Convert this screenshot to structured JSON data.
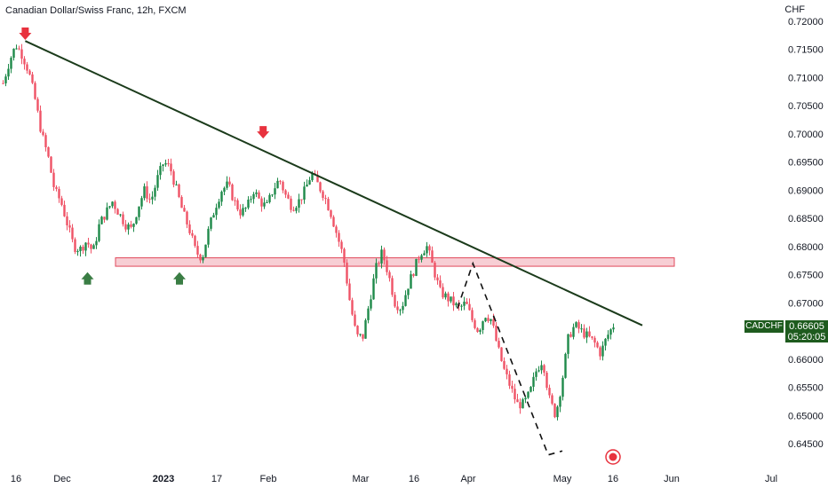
{
  "header": {
    "title": "Canadian Dollar/Swiss Franc, 12h, FXCM",
    "currency": "CHF"
  },
  "badges": {
    "symbol": "CADCHF",
    "price": "0.66605",
    "countdown": "05:20:05"
  },
  "chart_data": {
    "type": "candlestick",
    "title": "Canadian Dollar/Swiss Franc, 12h, FXCM",
    "y_ticks": [
      "0.72000",
      "0.71500",
      "0.71000",
      "0.70500",
      "0.70000",
      "0.69500",
      "0.69000",
      "0.68500",
      "0.68000",
      "0.67500",
      "0.67000",
      "0.66500",
      "0.66000",
      "0.65500",
      "0.65000",
      "0.64500"
    ],
    "x_ticks": [
      "16",
      "Dec",
      "2023",
      "17",
      "Feb",
      "Mar",
      "16",
      "Apr",
      "May",
      "16",
      "Jun",
      "Jul"
    ],
    "ylim": [
      0.6425,
      0.7205
    ],
    "close_path": [
      0.709,
      0.713,
      0.7158,
      0.714,
      0.711,
      0.706,
      0.7,
      0.696,
      0.69,
      0.688,
      0.684,
      0.68,
      0.6795,
      0.681,
      0.679,
      0.684,
      0.686,
      0.688,
      0.686,
      0.684,
      0.683,
      0.687,
      0.69,
      0.688,
      0.692,
      0.695,
      0.694,
      0.69,
      0.686,
      0.683,
      0.679,
      0.678,
      0.683,
      0.687,
      0.69,
      0.691,
      0.688,
      0.686,
      0.687,
      0.69,
      0.688,
      0.687,
      0.69,
      0.692,
      0.689,
      0.687,
      0.688,
      0.69,
      0.693,
      0.691,
      0.689,
      0.686,
      0.682,
      0.678,
      0.67,
      0.664,
      0.664,
      0.67,
      0.676,
      0.679,
      0.675,
      0.67,
      0.669,
      0.673,
      0.676,
      0.679,
      0.68,
      0.676,
      0.672,
      0.671,
      0.67,
      0.669,
      0.67,
      0.667,
      0.665,
      0.668,
      0.667,
      0.662,
      0.658,
      0.655,
      0.652,
      0.652,
      0.654,
      0.658,
      0.66,
      0.653,
      0.65,
      0.656,
      0.664,
      0.666,
      0.665,
      0.664,
      0.663,
      0.661,
      0.664,
      0.666
    ],
    "annotations": {
      "trendline": [
        [
          0.2,
          0.7165
        ],
        [
          9.5,
          0.666
        ]
      ],
      "resistance_zone": [
        0.6765,
        0.678
      ],
      "arrows_down": [
        [
          0.2,
          0.717
        ],
        [
          3.9,
          0.6995
        ]
      ],
      "arrows_up": [
        [
          1.25,
          0.6745
        ],
        [
          2.3,
          0.6745
        ]
      ],
      "projection": [
        [
          6.8,
          0.669
        ],
        [
          7.05,
          0.677
        ],
        [
          7.85,
          0.643
        ],
        [
          8.0,
          0.6437
        ]
      ]
    },
    "colors": {
      "up": "#1e8a4a",
      "down": "#ef5366",
      "trendline": "#1b3b1b",
      "zone_fill": "#f6c6cc",
      "zone_stroke": "#e04a5c"
    },
    "grid": false
  }
}
